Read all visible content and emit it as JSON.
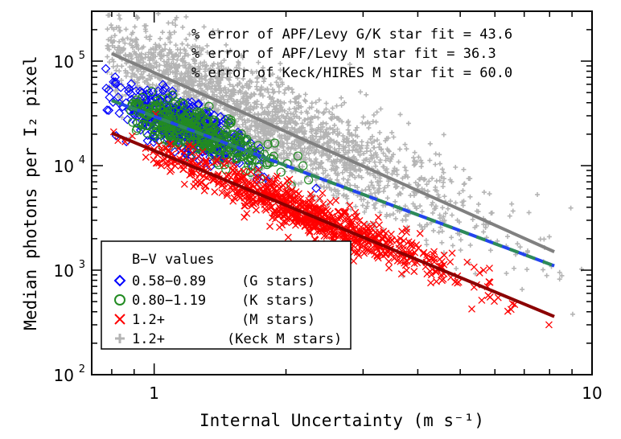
{
  "chart_data": {
    "type": "scatter",
    "title": "",
    "xlabel": "Internal Uncertainty (m s⁻¹)",
    "ylabel": "Median photons per I₂ pixel",
    "xscale": "log",
    "yscale": "log",
    "xlim": [
      0.72,
      10
    ],
    "ylim": [
      100,
      300000
    ],
    "x_ticks": [
      {
        "value": 1,
        "label": "1"
      },
      {
        "value": 10,
        "label": "10"
      }
    ],
    "y_ticks": [
      {
        "value": 100,
        "label": "10",
        "sup": "2"
      },
      {
        "value": 1000,
        "label": "10",
        "sup": "3"
      },
      {
        "value": 10000,
        "label": "10",
        "sup": "4"
      },
      {
        "value": 100000,
        "label": "10",
        "sup": "5"
      }
    ],
    "annotations": [
      "% error of APF/Levy G/K star fit = 43.6",
      "% error of APF/Levy M star fit = 36.3",
      "% error of Keck/HIRES M star fit = 60.0"
    ],
    "legend": {
      "title": "B−V values",
      "placement": "bottom-left",
      "entries": [
        {
          "range": "0.58−0.89",
          "label": "(G stars)",
          "marker": "diamond",
          "color": "#0000ff"
        },
        {
          "range": "0.80−1.19",
          "label": "(K stars)",
          "marker": "circle",
          "color": "#228b22"
        },
        {
          "range": "1.2+",
          "label": "(M stars)",
          "marker": "x",
          "color": "#ff0000"
        },
        {
          "range": "1.2+",
          "label": "(Keck M stars)",
          "marker": "plus",
          "color": "#b4b4b4"
        }
      ]
    },
    "fits": [
      {
        "name": "Keck/HIRES M star fit",
        "color": "#808080",
        "x": [
          0.8,
          8.2
        ],
        "y": [
          118000,
          1500
        ]
      },
      {
        "name": "APF/Levy G/K star fit",
        "color": "#2244ee",
        "color2": "#2e8b57",
        "x": [
          0.8,
          8.2
        ],
        "y": [
          42000,
          1100
        ]
      },
      {
        "name": "APF/Levy M star fit",
        "color": "#8b0000",
        "x": [
          0.8,
          8.2
        ],
        "y": [
          20500,
          360
        ]
      }
    ],
    "series": [
      {
        "name": "1.2+ (Keck M stars)",
        "marker": "plus",
        "color": "#b4b4b4",
        "n": 2200,
        "x_range": [
          0.78,
          9.5
        ],
        "logx_center": 0.22,
        "logx_sd": 0.26,
        "fit": [
          118000,
          1500
        ],
        "scatter_dex": 0.24
      },
      {
        "name": "0.58−0.89 (G stars)",
        "marker": "diamond",
        "color": "#0000ff",
        "n": 520,
        "x_range": [
          0.76,
          2.4
        ],
        "logx_center": 0.07,
        "logx_sd": 0.07,
        "fit": [
          42000,
          1100
        ],
        "scatter_dex": 0.12
      },
      {
        "name": "0.80−1.19 (K stars)",
        "marker": "circle",
        "color": "#228b22",
        "n": 360,
        "x_range": [
          0.88,
          2.5
        ],
        "logx_center": 0.1,
        "logx_sd": 0.09,
        "fit": [
          42000,
          1100
        ],
        "scatter_dex": 0.1
      },
      {
        "name": "1.2+ (M stars)",
        "marker": "x",
        "color": "#ff0000",
        "n": 820,
        "x_range": [
          0.8,
          8.0
        ],
        "logx_center": 0.34,
        "logx_sd": 0.17,
        "fit": [
          20500,
          360
        ],
        "scatter_dex": 0.1
      }
    ]
  }
}
